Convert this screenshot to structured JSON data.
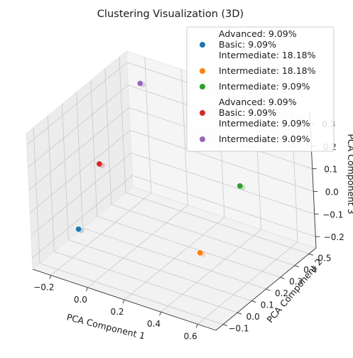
{
  "chart_data": {
    "type": "scatter",
    "title": "Clustering Visualization (3D)",
    "xlabel": "PCA Component 1",
    "ylabel": "PCA Component 2",
    "zlabel": "PCA Component 3",
    "x_ticks": [
      "−0.2",
      "0.0",
      "0.2",
      "0.4",
      "0.6"
    ],
    "y_ticks": [
      "−0.1",
      "0.0",
      "0.1",
      "0.2",
      "0.3",
      "0.4",
      "0.5"
    ],
    "z_ticks": [
      "−0.2",
      "−0.1",
      "0.0",
      "0.1",
      "0.2",
      "0.3"
    ],
    "xlim": [
      -0.3,
      0.7
    ],
    "ylim": [
      -0.15,
      0.55
    ],
    "zlim": [
      -0.25,
      0.35
    ],
    "grid": true,
    "legend_position": "top-right",
    "series": [
      {
        "name": "Advanced: 9.09%\nBasic: 9.09%\nIntermediate: 18.18%",
        "color": "#1f77b4",
        "points": [
          {
            "x": -0.2,
            "y": 0.05,
            "z": -0.15
          }
        ]
      },
      {
        "name": "Intermediate: 18.18%",
        "color": "#ff7f0e",
        "points": [
          {
            "x": 0.55,
            "y": -0.05,
            "z": 0.0
          }
        ]
      },
      {
        "name": "Intermediate: 9.09%",
        "color": "#2ca02c",
        "points": [
          {
            "x": 0.5,
            "y": 0.3,
            "z": 0.1
          }
        ]
      },
      {
        "name": "Advanced: 9.09%\nBasic: 9.09%\nIntermediate: 9.09%",
        "color": "#d62728",
        "points": [
          {
            "x": -0.15,
            "y": 0.15,
            "z": 0.1
          }
        ]
      },
      {
        "name": "Intermediate: 9.09%",
        "color": "#9467bd",
        "points": [
          {
            "x": -0.15,
            "y": 0.45,
            "z": 0.3
          }
        ]
      }
    ]
  }
}
